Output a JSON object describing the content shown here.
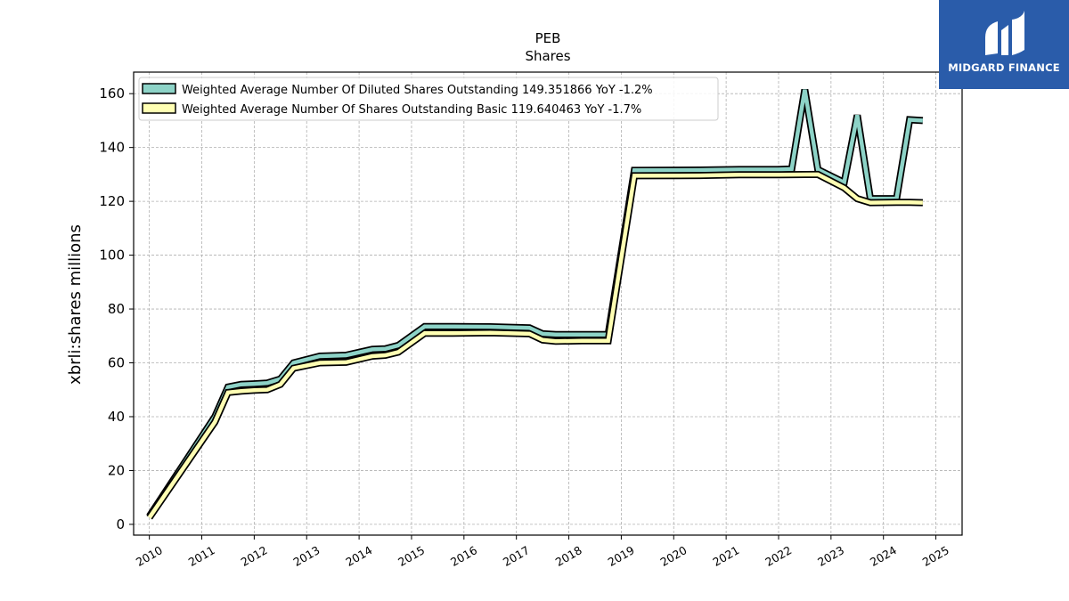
{
  "logo": {
    "text": "MIDGARD FINANCE",
    "color": "#2a5caa"
  },
  "chart_data": {
    "type": "line",
    "title": "PEB",
    "subtitle": "Shares",
    "ylabel": "xbrli:shares millions",
    "xlabel": "",
    "xlim": [
      2009.7,
      2025.5
    ],
    "ylim": [
      -4,
      168
    ],
    "grid": true,
    "legend_position": "top-left",
    "x_ticks": [
      2010,
      2011,
      2012,
      2013,
      2014,
      2015,
      2016,
      2017,
      2018,
      2019,
      2020,
      2021,
      2022,
      2023,
      2024,
      2025
    ],
    "y_ticks": [
      0,
      20,
      40,
      60,
      80,
      100,
      120,
      140,
      160
    ],
    "series": [
      {
        "name": "Weighted Average Number Of Diluted Shares Outstanding  149.351866 YoY -1.2%",
        "color": "#8dd3c7",
        "points": [
          [
            2010.0,
            3.0
          ],
          [
            2011.25,
            40.0
          ],
          [
            2011.5,
            51.0
          ],
          [
            2011.75,
            52.0
          ],
          [
            2012.0,
            52.2
          ],
          [
            2012.25,
            52.5
          ],
          [
            2012.5,
            54.0
          ],
          [
            2012.75,
            60.0
          ],
          [
            2013.25,
            62.5
          ],
          [
            2013.75,
            62.8
          ],
          [
            2014.25,
            65.0
          ],
          [
            2014.5,
            65.2
          ],
          [
            2014.75,
            66.5
          ],
          [
            2015.25,
            73.5
          ],
          [
            2015.75,
            73.5
          ],
          [
            2016.5,
            73.4
          ],
          [
            2017.25,
            73.0
          ],
          [
            2017.5,
            70.8
          ],
          [
            2017.75,
            70.5
          ],
          [
            2018.25,
            70.5
          ],
          [
            2018.75,
            70.5
          ],
          [
            2019.25,
            131.5
          ],
          [
            2020.5,
            131.6
          ],
          [
            2021.25,
            131.8
          ],
          [
            2022.0,
            131.8
          ],
          [
            2022.25,
            132.0
          ],
          [
            2022.5,
            161.5
          ],
          [
            2022.75,
            131.8
          ],
          [
            2023.25,
            127.0
          ],
          [
            2023.5,
            152.0
          ],
          [
            2023.75,
            121.0
          ],
          [
            2024.25,
            121.0
          ],
          [
            2024.5,
            150.3
          ],
          [
            2024.75,
            150.0
          ]
        ]
      },
      {
        "name": "Weighted Average Number Of Shares Outstanding Basic  119.640463 YoY -1.7%",
        "color": "#ffffb3",
        "points": [
          [
            2010.0,
            2.5
          ],
          [
            2011.25,
            38.0
          ],
          [
            2011.5,
            49.0
          ],
          [
            2011.75,
            49.5
          ],
          [
            2012.0,
            49.8
          ],
          [
            2012.25,
            50.0
          ],
          [
            2012.5,
            52.0
          ],
          [
            2012.75,
            58.0
          ],
          [
            2013.25,
            60.0
          ],
          [
            2013.75,
            60.2
          ],
          [
            2014.25,
            62.5
          ],
          [
            2014.5,
            62.8
          ],
          [
            2014.75,
            64.0
          ],
          [
            2015.25,
            71.0
          ],
          [
            2015.75,
            71.0
          ],
          [
            2016.5,
            71.2
          ],
          [
            2017.25,
            70.8
          ],
          [
            2017.5,
            68.5
          ],
          [
            2017.75,
            68.0
          ],
          [
            2018.25,
            68.2
          ],
          [
            2018.75,
            68.2
          ],
          [
            2019.25,
            129.5
          ],
          [
            2020.5,
            129.6
          ],
          [
            2021.25,
            129.9
          ],
          [
            2022.0,
            129.9
          ],
          [
            2022.75,
            130.0
          ],
          [
            2023.25,
            125.0
          ],
          [
            2023.5,
            121.0
          ],
          [
            2023.75,
            119.5
          ],
          [
            2024.25,
            119.6
          ],
          [
            2024.5,
            119.6
          ],
          [
            2024.75,
            119.5
          ]
        ]
      }
    ]
  }
}
